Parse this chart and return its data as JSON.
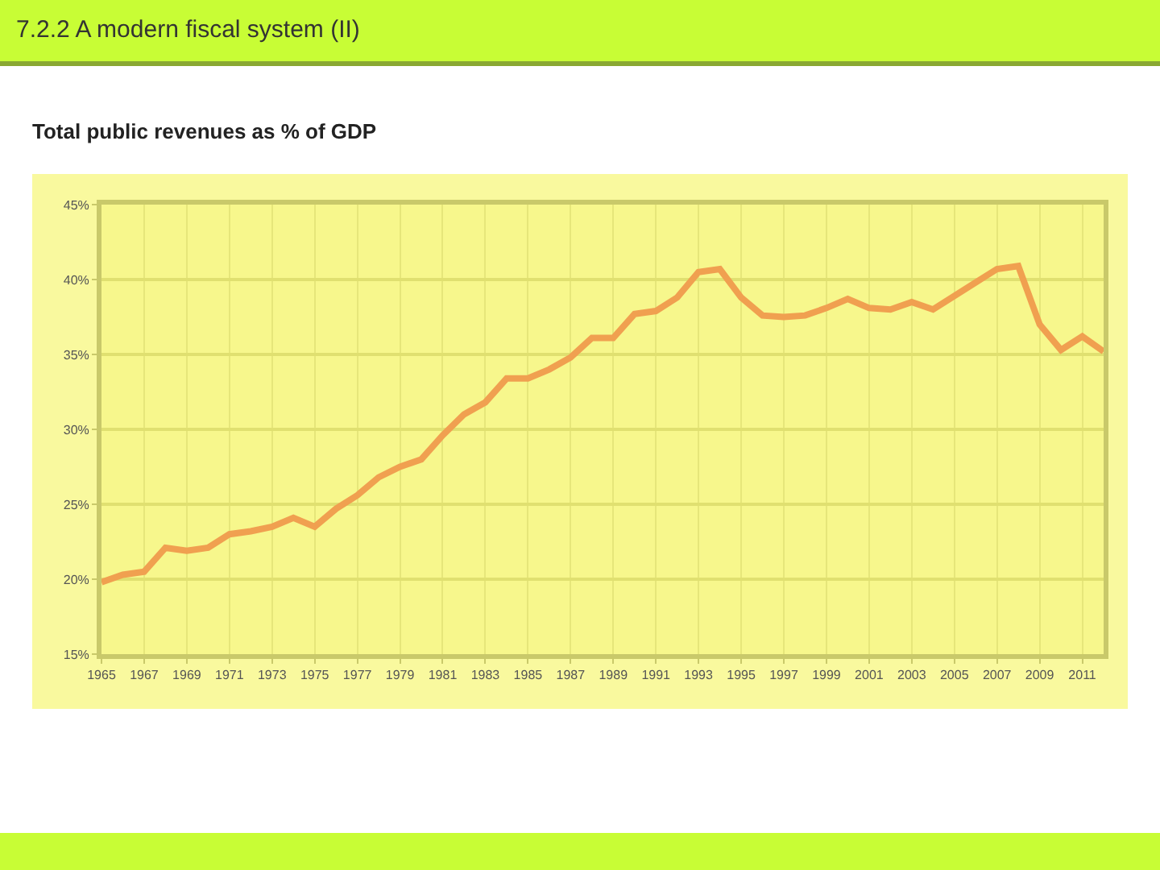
{
  "chart_data": {
    "type": "line",
    "title": "7.2.2 A modern fiscal system (II)",
    "subtitle": "Total public revenues as % of GDP",
    "x": [
      1965,
      1966,
      1967,
      1968,
      1969,
      1970,
      1971,
      1972,
      1973,
      1974,
      1975,
      1976,
      1977,
      1978,
      1979,
      1980,
      1981,
      1982,
      1983,
      1984,
      1985,
      1986,
      1987,
      1988,
      1989,
      1990,
      1991,
      1992,
      1993,
      1994,
      1995,
      1996,
      1997,
      1998,
      1999,
      2000,
      2001,
      2002,
      2003,
      2004,
      2005,
      2006,
      2007,
      2008,
      2009,
      2010,
      2011,
      2012
    ],
    "series": [
      {
        "color": "#f0a050",
        "values": [
          19.8,
          20.3,
          20.5,
          22.1,
          21.9,
          22.1,
          23.0,
          23.2,
          23.5,
          24.1,
          23.5,
          24.7,
          25.6,
          26.8,
          27.5,
          28.0,
          29.6,
          31.0,
          31.8,
          33.4,
          33.4,
          34.0,
          34.8,
          36.1,
          36.1,
          37.7,
          37.9,
          38.8,
          40.5,
          40.7,
          38.8,
          37.6,
          37.5,
          37.6,
          38.1,
          38.7,
          38.1,
          38.0,
          38.5,
          38.0,
          38.9,
          39.8,
          40.7,
          40.9,
          37.0,
          35.3,
          36.2,
          35.2
        ]
      }
    ],
    "xlim": [
      1965,
      2012
    ],
    "xticks": [
      1965,
      1967,
      1969,
      1971,
      1973,
      1975,
      1977,
      1979,
      1981,
      1983,
      1985,
      1987,
      1989,
      1991,
      1993,
      1995,
      1997,
      1999,
      2001,
      2003,
      2005,
      2007,
      2009,
      2011
    ],
    "ylim": [
      15,
      45
    ],
    "yticks": [
      {
        "value": 15,
        "label": "15%"
      },
      {
        "value": 20,
        "label": "20%"
      },
      {
        "value": 25,
        "label": "25%"
      },
      {
        "value": 30,
        "label": "30%"
      },
      {
        "value": 35,
        "label": "35%"
      },
      {
        "value": 40,
        "label": "40%"
      },
      {
        "value": 45,
        "label": "45%"
      }
    ],
    "grid": true,
    "marker": "none",
    "line_style": "solid"
  }
}
